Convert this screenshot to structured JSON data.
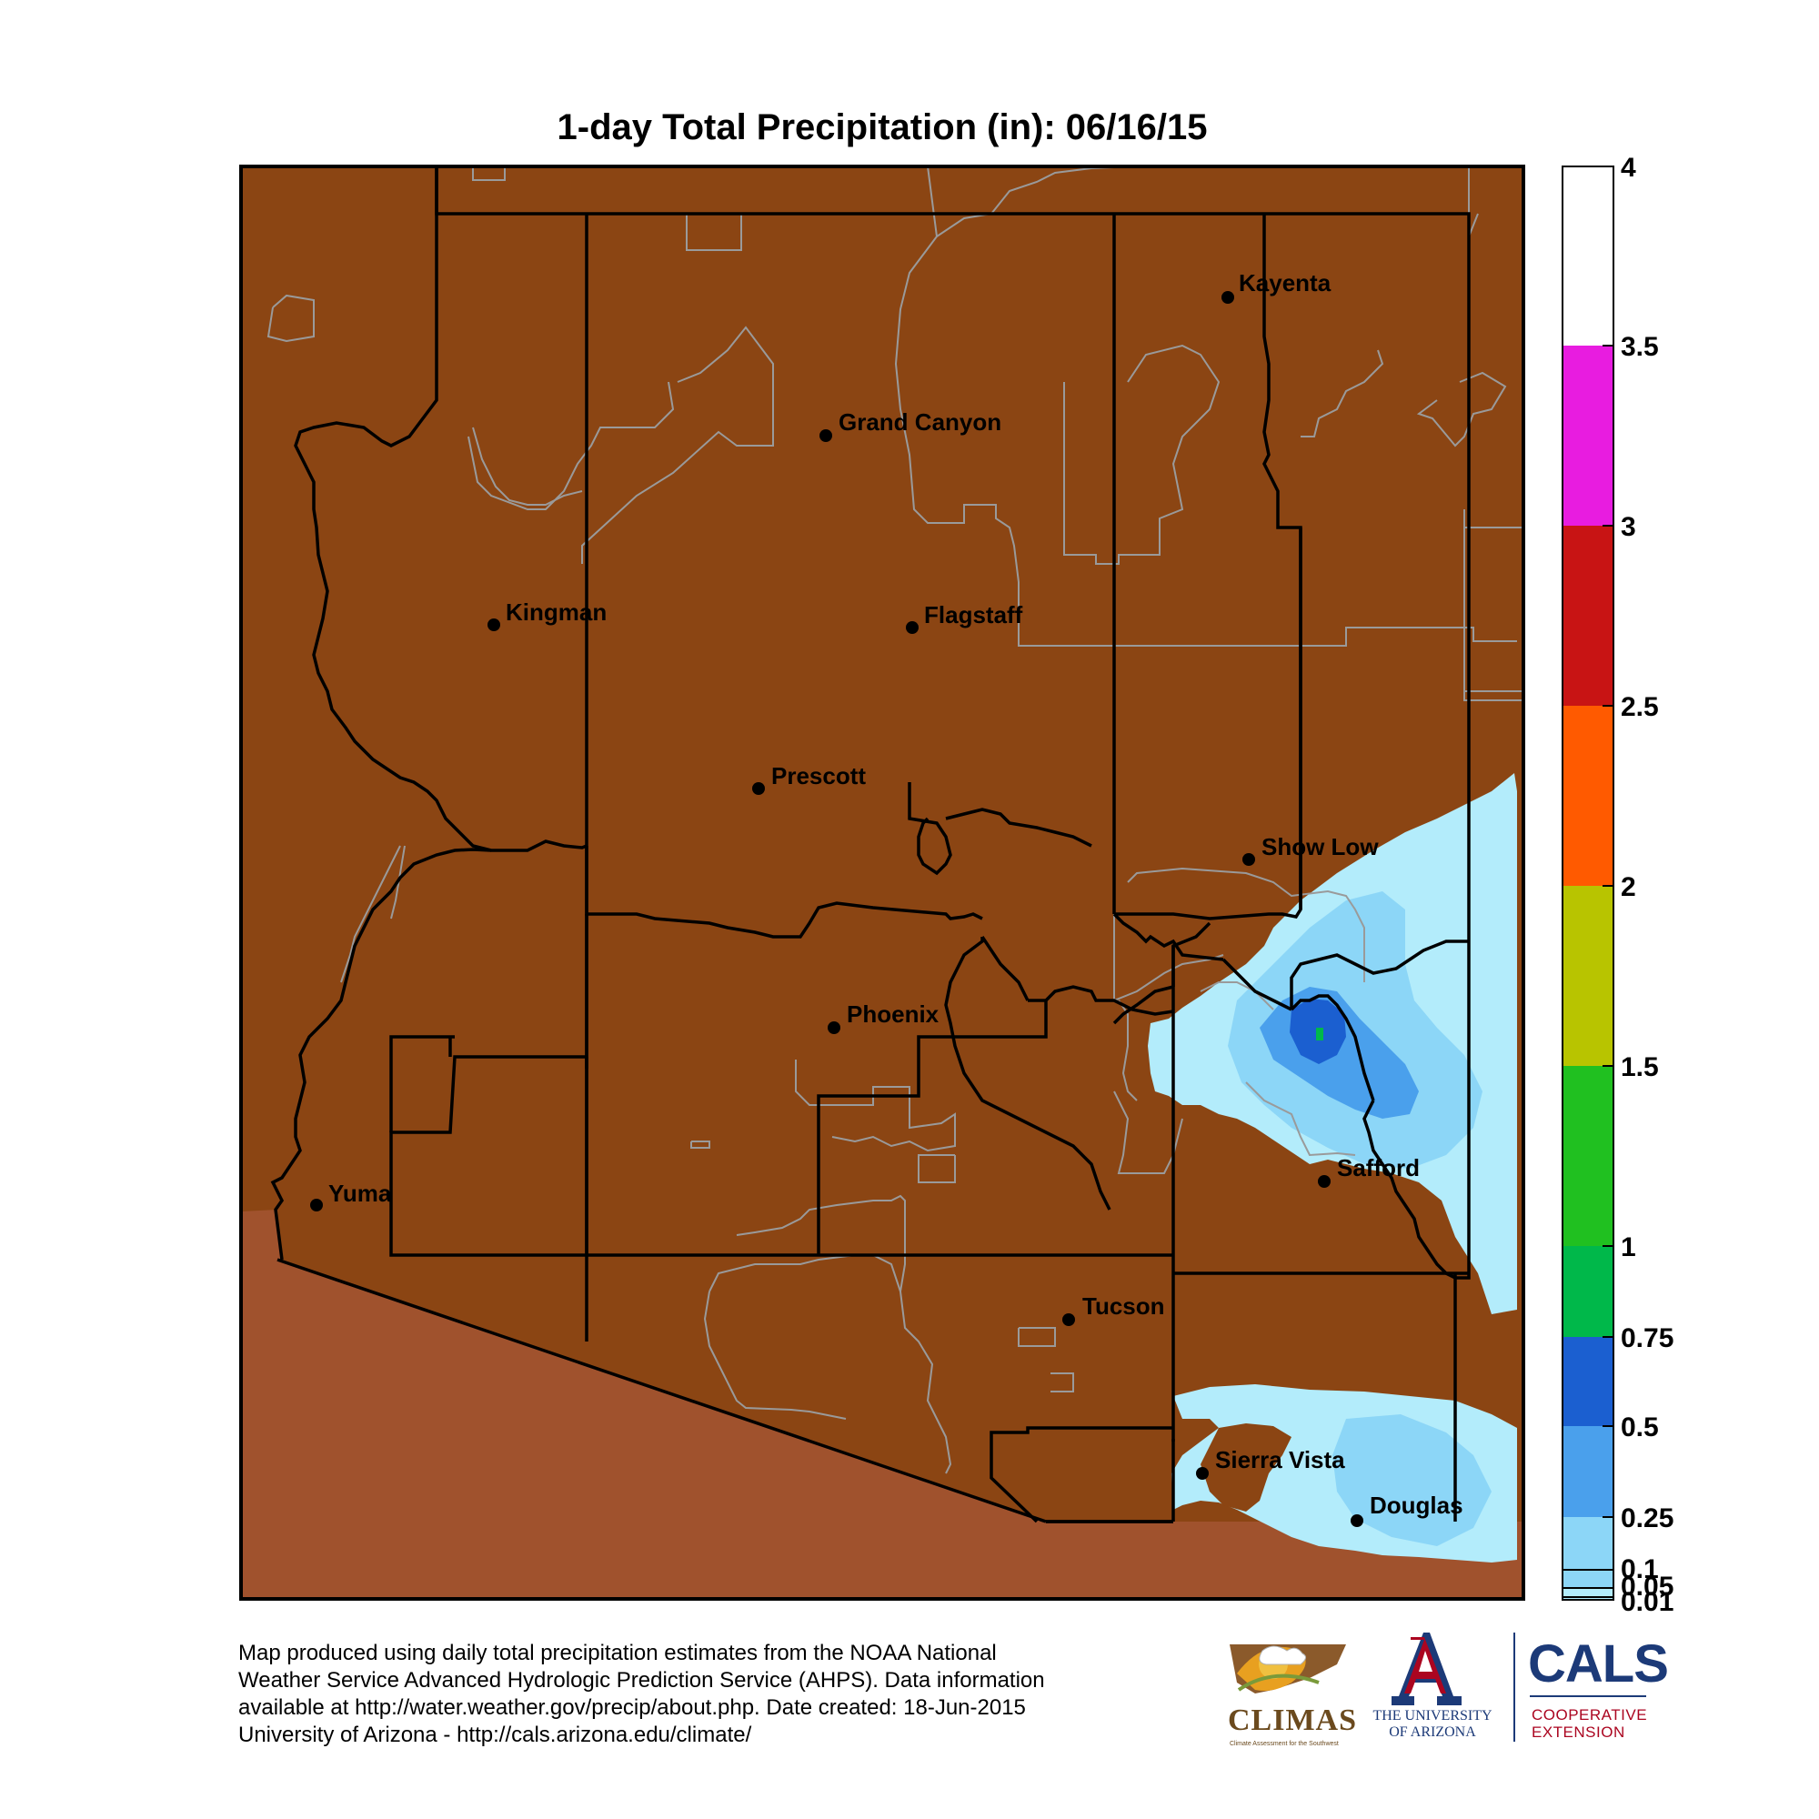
{
  "title": "1-day Total Precipitation (in): 06/16/15",
  "colors": {
    "no_precip": "#8b4513",
    "outside_state": "#a0522d",
    "precip_0_01": "#b3ecfb",
    "precip_0_1": "#8cd6f7",
    "precip_0_25": "#4aa0ec",
    "precip_0_5": "#1b5fd0",
    "precip_0_75": "#00b84a",
    "precip_1": "#20c020",
    "precip_1_5": "#b8c400",
    "precip_2": "#ff5a00",
    "precip_2_5": "#c81414",
    "precip_3": "#e81ce0",
    "precip_3_5": "#ffffff",
    "county_border": "#000000",
    "reservation_border": "#9a9a9a"
  },
  "cities": [
    {
      "name": "Kayenta"
    },
    {
      "name": "Grand Canyon"
    },
    {
      "name": "Kingman"
    },
    {
      "name": "Flagstaff"
    },
    {
      "name": "Prescott"
    },
    {
      "name": "Show Low"
    },
    {
      "name": "Phoenix"
    },
    {
      "name": "Safford"
    },
    {
      "name": "Yuma"
    },
    {
      "name": "Tucson"
    },
    {
      "name": "Sierra Vista"
    },
    {
      "name": "Douglas"
    }
  ],
  "legend": {
    "labels": [
      "4",
      "3.5",
      "3",
      "2.5",
      "2",
      "1.5",
      "1",
      "0.75",
      "0.5",
      "0.25",
      "0.1",
      "0.05",
      "0.01"
    ]
  },
  "footer": {
    "line1": "Map produced using daily total precipitation estimates from the NOAA National",
    "line2": "Weather Service Advanced Hydrologic Prediction Service (AHPS). Data information",
    "line3": "available at http://water.weather.gov/precip/about.php. Date created: 18-Jun-2015",
    "line4": "University of Arizona - http://cals.arizona.edu/climate/"
  },
  "logos": {
    "climas": "CLIMAS",
    "climas_tagline": "Climate Assessment for the Southwest",
    "ua_letter": "A",
    "ua_line1": "THE UNIVERSITY",
    "ua_line2": "OF ARIZONA",
    "cals": "CALS",
    "cals_sub1": "COOPERATIVE",
    "cals_sub2": "EXTENSION"
  }
}
